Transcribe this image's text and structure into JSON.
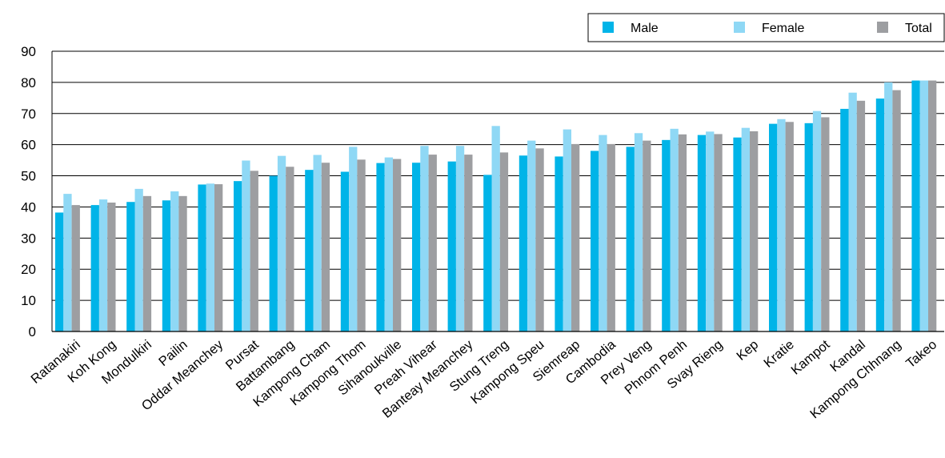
{
  "chart_data": {
    "type": "bar",
    "title": "",
    "xlabel": "",
    "ylabel": "",
    "ylim": [
      0,
      90
    ],
    "yticks": [
      0,
      10,
      20,
      30,
      40,
      50,
      60,
      70,
      80,
      90
    ],
    "grid": true,
    "legend_position": "top-right",
    "categories": [
      "Ratanakiri",
      "Koh Kong",
      "Mondulkiri",
      "Pailin",
      "Oddar Meanchey",
      "Pursat",
      "Battambang",
      "Kampong Cham",
      "Kampong Thom",
      "Sihanoukville",
      "Preah Vihear",
      "Banteay Meanchey",
      "Stung Treng",
      "Kampong Speu",
      "Siemreap",
      "Cambodia",
      "Prey Veng",
      "Phnom Penh",
      "Svay Rieng",
      "Kep",
      "Kratie",
      "Kampot",
      "Kandal",
      "Kampong Chhnang",
      "Takeo"
    ],
    "series": [
      {
        "name": "Male",
        "color": "#00b4e8",
        "values": [
          38.2,
          40.6,
          41.6,
          42.1,
          47.2,
          48.3,
          50.0,
          51.9,
          51.3,
          54.1,
          54.2,
          54.6,
          50.3,
          56.5,
          56.2,
          58.0,
          59.3,
          61.5,
          63.1,
          62.3,
          66.7,
          66.9,
          71.5,
          74.8,
          80.6
        ]
      },
      {
        "name": "Female",
        "color": "#8fd8f5",
        "values": [
          44.2,
          42.4,
          45.8,
          45.0,
          47.5,
          54.9,
          56.4,
          56.7,
          59.3,
          55.9,
          59.6,
          59.6,
          66.0,
          61.3,
          64.9,
          63.1,
          63.7,
          65.1,
          64.2,
          65.4,
          68.2,
          70.8,
          76.7,
          80.0,
          80.6
        ]
      },
      {
        "name": "Total",
        "color": "#9d9ea1",
        "values": [
          40.6,
          41.4,
          43.5,
          43.5,
          47.3,
          51.6,
          52.9,
          54.2,
          55.2,
          55.4,
          56.8,
          56.8,
          57.5,
          58.8,
          60.2,
          60.2,
          61.3,
          63.3,
          63.4,
          64.3,
          67.3,
          68.8,
          74.1,
          77.5,
          80.6
        ]
      }
    ]
  }
}
